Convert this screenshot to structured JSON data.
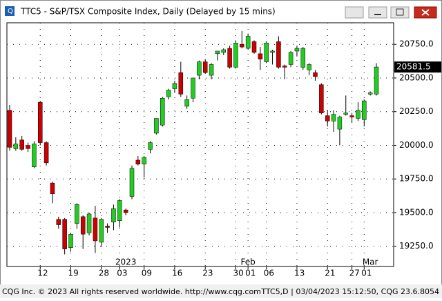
{
  "window": {
    "title": "TTC5 - S&P/TSX Composite Index, Daily (Delayed by 15 mins)",
    "status_left": "CQG Inc. © 2023 All rights reserved worldwide. http://www.cqg.com",
    "status_right": "TTC5,D | 03/04/2023 15:12:50, CQG 23.6.8054"
  },
  "chart_data": {
    "type": "candlestick",
    "categories": [
      null,
      null,
      null,
      null,
      null,
      "12",
      null,
      null,
      null,
      null,
      "19",
      null,
      null,
      null,
      null,
      "28",
      null,
      null,
      "03",
      null,
      null,
      null,
      "09",
      null,
      null,
      null,
      null,
      "16",
      null,
      null,
      null,
      null,
      "23",
      null,
      null,
      null,
      null,
      "30",
      null,
      "01",
      null,
      null,
      "06",
      null,
      null,
      null,
      null,
      "13",
      null,
      null,
      null,
      null,
      "21",
      null,
      null,
      null,
      "27",
      null,
      "01",
      null,
      null
    ],
    "month_categories": [
      null,
      null,
      null,
      null,
      null,
      null,
      null,
      null,
      null,
      null,
      null,
      null,
      null,
      null,
      null,
      null,
      null,
      null,
      null,
      "2023",
      null,
      null,
      null,
      null,
      null,
      null,
      null,
      null,
      null,
      null,
      null,
      null,
      null,
      null,
      null,
      null,
      null,
      null,
      null,
      "Feb",
      null,
      null,
      null,
      null,
      null,
      null,
      null,
      null,
      null,
      null,
      null,
      null,
      null,
      null,
      null,
      null,
      null,
      null,
      null,
      "Mar",
      null
    ],
    "open": [
      20260,
      19975,
      20040,
      20000,
      19840,
      20320,
      20020,
      19720,
      19450,
      19450,
      19240,
      19420,
      19470,
      19350,
      19460,
      19280,
      19400,
      19430,
      19440,
      19520,
      19620,
      19890,
      19860,
      19970,
      20090,
      20150,
      20360,
      20420,
      20540,
      20290,
      20350,
      20520,
      20620,
      20520,
      20680,
      20690,
      20720,
      20580,
      20750,
      20720,
      20770,
      20680,
      20620,
      20690,
      20770,
      20590,
      20600,
      20700,
      20580,
      20560,
      20540,
      20450,
      20220,
      20180,
      20120,
      20230,
      20220,
      20200,
      20190,
      20380,
      20380
    ],
    "high": [
      20300,
      20060,
      20070,
      20020,
      20030,
      20330,
      20030,
      19730,
      19470,
      19460,
      19350,
      19570,
      19480,
      19500,
      19550,
      19460,
      19420,
      19560,
      19600,
      19530,
      19850,
      19920,
      19920,
      20030,
      20200,
      20360,
      20420,
      20480,
      20620,
      20370,
      20500,
      20630,
      20640,
      20610,
      20700,
      20720,
      20740,
      20780,
      20850,
      20830,
      20780,
      20730,
      20770,
      20710,
      20810,
      20600,
      20700,
      20740,
      20730,
      20610,
      20560,
      20460,
      20260,
      20260,
      20220,
      20370,
      20240,
      20320,
      20340,
      20400,
      20610
    ],
    "low": [
      19960,
      19960,
      19960,
      19950,
      19830,
      20000,
      19850,
      19570,
      19380,
      19190,
      19210,
      19380,
      19230,
      19330,
      19200,
      19250,
      19350,
      19370,
      19390,
      19480,
      19600,
      19850,
      19760,
      19940,
      20080,
      20140,
      20340,
      20390,
      20360,
      20270,
      20320,
      20490,
      20530,
      20490,
      20630,
      20670,
      20570,
      20570,
      20720,
      20710,
      20680,
      20560,
      20610,
      20600,
      20570,
      20490,
      20580,
      20660,
      20560,
      20520,
      20480,
      20230,
      20140,
      20100,
      20000,
      20220,
      20170,
      20180,
      20140,
      20370,
      20370
    ],
    "close": [
      19985,
      20010,
      19970,
      19975,
      20010,
      20020,
      19870,
      19640,
      19410,
      19230,
      19340,
      19560,
      19340,
      19490,
      19290,
      19450,
      19390,
      19530,
      19590,
      19500,
      19830,
      19860,
      19910,
      20020,
      20200,
      20350,
      20410,
      20460,
      20380,
      20340,
      20500,
      20620,
      20540,
      20600,
      20700,
      20710,
      20580,
      20760,
      20730,
      20810,
      20690,
      20640,
      20760,
      20700,
      20580,
      20580,
      20690,
      20720,
      20720,
      20600,
      20510,
      20240,
      20180,
      20230,
      20210,
      20240,
      20210,
      20260,
      20330,
      20390,
      20581.5
    ],
    "up_color": "#22cc22",
    "down_color": "#cc0000",
    "ylim": [
      19100,
      20910
    ],
    "yticks": [
      {
        "value": 19250,
        "label": "19250.0"
      },
      {
        "value": 19500,
        "label": "19500.0"
      },
      {
        "value": 19750,
        "label": "19750.0"
      },
      {
        "value": 20000,
        "label": "20000.0"
      },
      {
        "value": 20250,
        "label": "20250.0"
      },
      {
        "value": 20500,
        "label": "20500.0"
      },
      {
        "value": 20750,
        "label": "20750.0"
      }
    ],
    "grid": true
  }
}
